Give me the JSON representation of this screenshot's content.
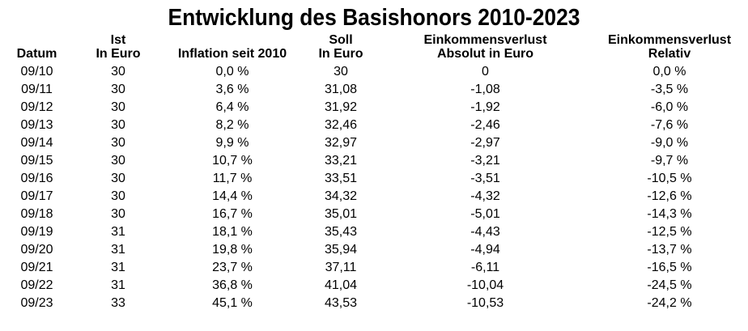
{
  "title": "Entwicklung des Basishonors 2010-2023",
  "colors": {
    "text": "#000000",
    "background": "#ffffff"
  },
  "chart_data": {
    "type": "table",
    "title": "Entwicklung des Basishonors 2010-2023",
    "columns": [
      "Datum",
      "Ist In Euro",
      "Inflation seit 2010",
      "Soll In Euro",
      "Einkommensverlust Absolut in Euro",
      "Einkommensverlust Relativ"
    ],
    "header_lines": [
      "Datum",
      "Ist\nIn Euro",
      "Inflation seit 2010",
      "Soll\nIn Euro",
      "Einkommensverlust\nAbsolut in Euro",
      "Einkommensverlust\nRelativ"
    ],
    "column_keys": [
      "datum",
      "ist-in-euro",
      "inflation-seit-2010",
      "soll-in-euro",
      "einkommensverlust-absolut",
      "einkommensverlust-relativ"
    ],
    "rows": [
      [
        "09/10",
        "30",
        "0,0 %",
        "30",
        "0",
        "0,0 %"
      ],
      [
        "09/11",
        "30",
        "3,6 %",
        "31,08",
        "-1,08",
        "-3,5 %"
      ],
      [
        "09/12",
        "30",
        "6,4 %",
        "31,92",
        "-1,92",
        "-6,0 %"
      ],
      [
        "09/13",
        "30",
        "8,2 %",
        "32,46",
        "-2,46",
        "-7,6 %"
      ],
      [
        "09/14",
        "30",
        "9,9 %",
        "32,97",
        "-2,97",
        "-9,0 %"
      ],
      [
        "09/15",
        "30",
        "10,7 %",
        "33,21",
        "-3,21",
        "-9,7 %"
      ],
      [
        "09/16",
        "30",
        "11,7 %",
        "33,51",
        "-3,51",
        "-10,5 %"
      ],
      [
        "09/17",
        "30",
        "14,4 %",
        "34,32",
        "-4,32",
        "-12,6 %"
      ],
      [
        "09/18",
        "30",
        "16,7 %",
        "35,01",
        "-5,01",
        "-14,3 %"
      ],
      [
        "09/19",
        "31",
        "18,1 %",
        "35,43",
        "-4,43",
        "-12,5 %"
      ],
      [
        "09/20",
        "31",
        "19,8 %",
        "35,94",
        "-4,94",
        "-13,7 %"
      ],
      [
        "09/21",
        "31",
        "23,7 %",
        "37,11",
        "-6,11",
        "-16,5 %"
      ],
      [
        "09/22",
        "31",
        "36,8 %",
        "41,04",
        "-10,04",
        "-24,5 %"
      ],
      [
        "09/23",
        "33",
        "45,1 %",
        "43,53",
        "-10,53",
        "-24,2 %"
      ]
    ]
  }
}
